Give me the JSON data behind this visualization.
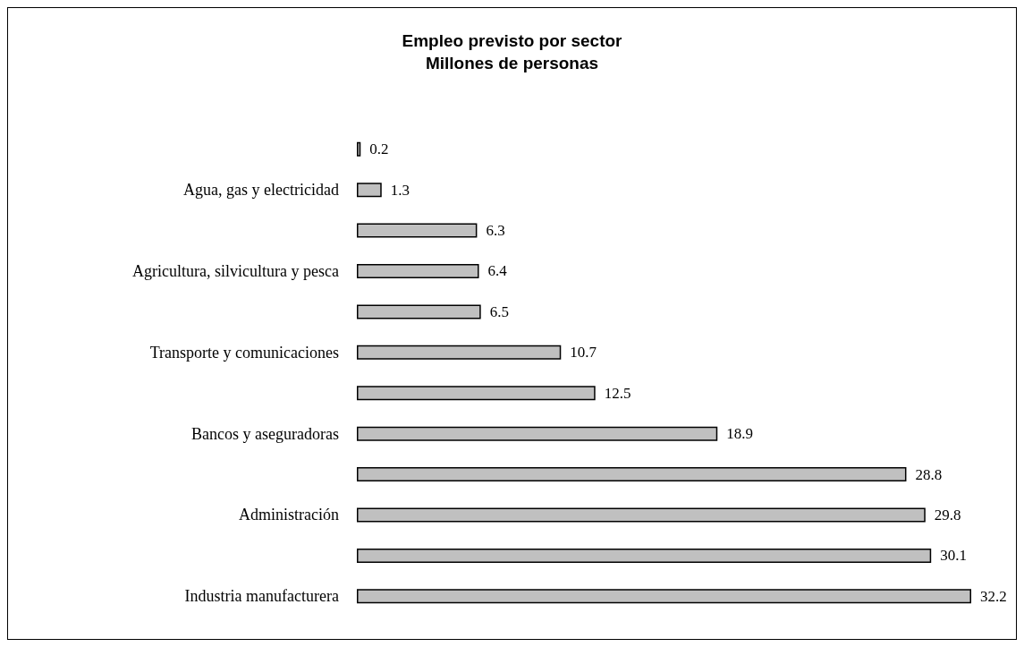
{
  "chart_data": {
    "type": "bar",
    "orientation": "horizontal",
    "title": "Empleo previsto por sector",
    "subtitle": "Millones de personas",
    "categories": [
      null,
      "Agua, gas y electricidad",
      null,
      "Agricultura, silvicultura y pesca",
      null,
      "Transporte y comunicaciones",
      null,
      "Bancos y aseguradoras",
      null,
      "Administración",
      null,
      "Industria manufacturera"
    ],
    "values": [
      0.2,
      1.3,
      6.3,
      6.4,
      6.5,
      10.7,
      12.5,
      18.9,
      28.8,
      29.8,
      30.1,
      32.2
    ],
    "color": "#c0c0c0",
    "data_labels": true
  }
}
